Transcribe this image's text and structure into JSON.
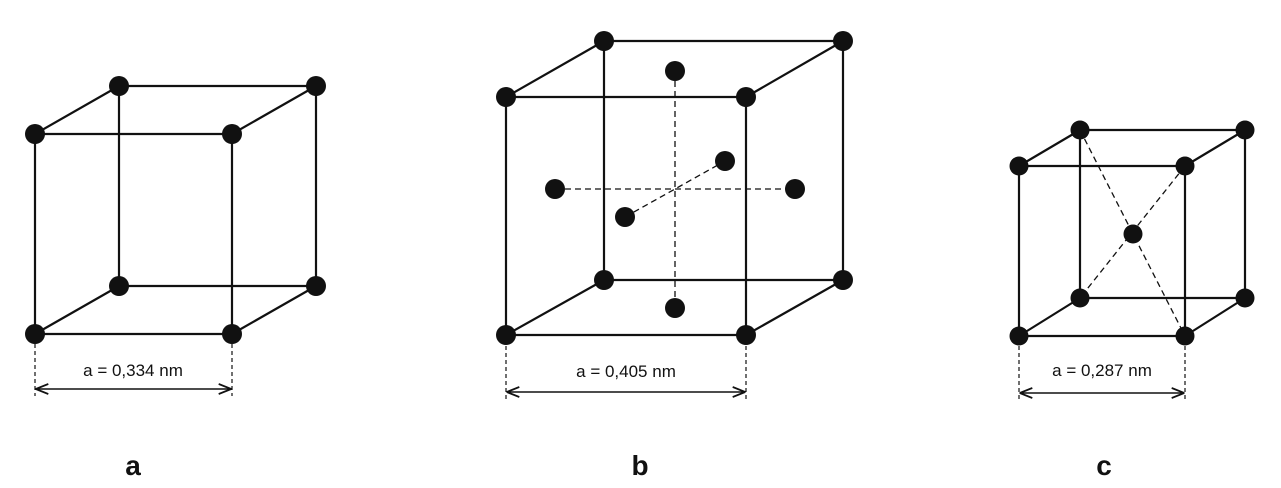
{
  "figures": [
    {
      "id": "a",
      "caption": "a",
      "dimension_label": "a = 0,334 nm"
    },
    {
      "id": "b",
      "caption": "b",
      "dimension_label": "a = 0,405 nm"
    },
    {
      "id": "c",
      "caption": "c",
      "dimension_label": "a = 0,287 nm"
    }
  ],
  "colors": {
    "ink": "#111111",
    "background": "#ffffff"
  }
}
